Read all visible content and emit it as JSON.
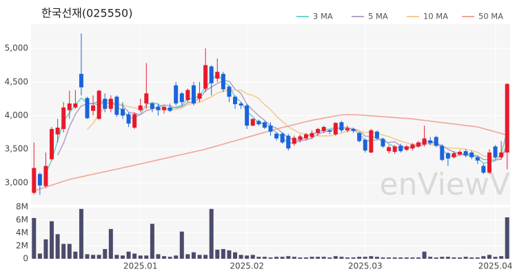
{
  "chart_data": [
    {
      "type": "candlestick",
      "title": "한국선재(025550)",
      "watermark": "enViewV",
      "categories": [
        null,
        null,
        null,
        null,
        null,
        null,
        null,
        null,
        null,
        null,
        null,
        null,
        null,
        null,
        null,
        null,
        null,
        null,
        "2025.01",
        null,
        null,
        null,
        null,
        null,
        null,
        null,
        null,
        null,
        null,
        null,
        null,
        null,
        null,
        null,
        null,
        null,
        "2025.02",
        null,
        null,
        null,
        null,
        null,
        null,
        null,
        null,
        null,
        null,
        null,
        null,
        null,
        null,
        null,
        null,
        null,
        null,
        null,
        "2025.03",
        null,
        null,
        null,
        null,
        null,
        null,
        null,
        null,
        null,
        null,
        null,
        null,
        null,
        null,
        null,
        null,
        null,
        null,
        null,
        null,
        null,
        "2025.04",
        null,
        null
      ],
      "open": [
        2850,
        3130,
        2950,
        3350,
        3720,
        3800,
        4080,
        4120,
        4620,
        4260,
        4070,
        3950,
        4250,
        4100,
        4280,
        4100,
        4020,
        3820,
        4080,
        4180,
        4180,
        4130,
        4080,
        4120,
        4450,
        4330,
        4230,
        4450,
        4250,
        4400,
        4730,
        4550,
        4620,
        4430,
        4280,
        4180,
        4150,
        3850,
        3920,
        3900,
        3850,
        3730,
        3730,
        3700,
        3580,
        3640,
        3660,
        3680,
        3740,
        3770,
        3780,
        3720,
        3900,
        3780,
        3800,
        3740,
        3640,
        3450,
        3760,
        3650,
        3470,
        3460,
        3550,
        3490,
        3510,
        3540,
        3570,
        3630,
        3680,
        3550,
        3440,
        3380,
        3420,
        3470,
        3450,
        3380,
        3250,
        3150,
        3540,
        3380,
        3450
      ],
      "high": [
        3600,
        3150,
        3450,
        3830,
        3950,
        4200,
        4370,
        4380,
        5220,
        4280,
        4300,
        4380,
        4330,
        4300,
        4300,
        4200,
        4050,
        4050,
        4250,
        4780,
        4200,
        4180,
        4150,
        4180,
        4500,
        4350,
        4400,
        4500,
        4500,
        5000,
        4750,
        4850,
        4650,
        4450,
        4300,
        4200,
        4170,
        3960,
        3940,
        3920,
        3900,
        3750,
        3750,
        3730,
        3700,
        3720,
        3740,
        3780,
        3820,
        3850,
        3800,
        3900,
        3920,
        3850,
        3820,
        3760,
        3660,
        3800,
        3780,
        3670,
        3560,
        3560,
        3580,
        3560,
        3590,
        3620,
        3850,
        3680,
        3700,
        3580,
        3460,
        3470,
        3490,
        3500,
        3480,
        3400,
        3280,
        3500,
        3560,
        3620,
        4480
      ],
      "low": [
        2830,
        2820,
        2920,
        3330,
        3600,
        3750,
        3950,
        4100,
        4300,
        3950,
        4000,
        3940,
        4050,
        4050,
        3980,
        3950,
        3830,
        3800,
        4050,
        4100,
        4050,
        4000,
        4030,
        4050,
        4150,
        4150,
        4200,
        4150,
        4200,
        4350,
        4300,
        4500,
        4350,
        4200,
        4100,
        4100,
        3800,
        3840,
        3850,
        3800,
        3700,
        3630,
        3580,
        3480,
        3550,
        3600,
        3630,
        3650,
        3700,
        3740,
        3720,
        3700,
        3750,
        3750,
        3740,
        3600,
        3450,
        3440,
        3640,
        3520,
        3440,
        3430,
        3450,
        3470,
        3480,
        3520,
        3540,
        3560,
        3530,
        3320,
        3250,
        3360,
        3400,
        3380,
        3350,
        3280,
        3130,
        3130,
        3350,
        3350,
        3200
      ],
      "close": [
        3220,
        2960,
        3250,
        3800,
        3820,
        4120,
        4180,
        4180,
        4420,
        3960,
        4150,
        4370,
        4100,
        4250,
        4010,
        4000,
        3880,
        4020,
        4150,
        4330,
        4100,
        4080,
        4130,
        4070,
        4180,
        4200,
        4380,
        4180,
        4330,
        4750,
        4480,
        4650,
        4390,
        4280,
        4170,
        4150,
        3850,
        3950,
        3870,
        3820,
        3760,
        3660,
        3600,
        3510,
        3670,
        3690,
        3720,
        3740,
        3800,
        3830,
        3760,
        3890,
        3780,
        3810,
        3770,
        3620,
        3480,
        3780,
        3660,
        3540,
        3530,
        3540,
        3470,
        3540,
        3570,
        3600,
        3660,
        3590,
        3550,
        3340,
        3360,
        3440,
        3460,
        3410,
        3380,
        3330,
        3150,
        3450,
        3380,
        3450,
        4470
      ],
      "up_color": "#e8192c",
      "down_color": "#1a63db",
      "series": [
        {
          "name": "3 MA",
          "color": "#72d2cb",
          "values": [
            null,
            null,
            3143,
            3337,
            3623,
            3913,
            4040,
            4160,
            4260,
            4187,
            4177,
            4160,
            4207,
            4240,
            4120,
            4087,
            3963,
            3967,
            4017,
            4167,
            4193,
            4170,
            4103,
            4093,
            4127,
            4150,
            4253,
            4253,
            4297,
            4420,
            4520,
            4627,
            4507,
            4440,
            4280,
            4200,
            4057,
            3983,
            3890,
            3880,
            3817,
            3747,
            3673,
            3590,
            3593,
            3623,
            3693,
            3717,
            3753,
            3790,
            3797,
            3827,
            3810,
            3827,
            3787,
            3733,
            3623,
            3627,
            3640,
            3660,
            3577,
            3537,
            3513,
            3517,
            3527,
            3570,
            3610,
            3617,
            3600,
            3493,
            3417,
            3380,
            3420,
            3437,
            3417,
            3373,
            3287,
            3310,
            3327,
            3427,
            3767
          ]
        },
        {
          "name": "5 MA",
          "color": "#b4a3ca",
          "values": [
            null,
            null,
            null,
            null,
            3410,
            3590,
            3834,
            4020,
            4144,
            4172,
            4178,
            4216,
            4200,
            4166,
            4176,
            4146,
            4048,
            4032,
            4012,
            4076,
            4096,
            4136,
            4158,
            4142,
            4112,
            4132,
            4192,
            4202,
            4254,
            4368,
            4424,
            4478,
            4520,
            4510,
            4394,
            4328,
            4168,
            4080,
            3998,
            3928,
            3850,
            3812,
            3742,
            3670,
            3640,
            3626,
            3638,
            3666,
            3724,
            3756,
            3770,
            3804,
            3812,
            3814,
            3802,
            3774,
            3692,
            3692,
            3662,
            3616,
            3598,
            3610,
            3548,
            3524,
            3530,
            3544,
            3568,
            3592,
            3594,
            3548,
            3500,
            3456,
            3430,
            3402,
            3410,
            3404,
            3346,
            3344,
            3338,
            3352,
            3580
          ]
        },
        {
          "name": "10 MA",
          "color": "#f2cb92",
          "values": [
            null,
            null,
            null,
            null,
            null,
            null,
            null,
            null,
            null,
            3791,
            3884,
            4025,
            4110,
            4155,
            4174,
            4162,
            4132,
            4116,
            4089,
            4126,
            4121,
            4092,
            4095,
            4077,
            4094,
            4114,
            4164,
            4180,
            4198,
            4240,
            4278,
            4335,
            4361,
            4382,
            4381,
            4376,
            4323,
            4300,
            4254,
            4161,
            4089,
            3990,
            3911,
            3834,
            3784,
            3738,
            3725,
            3704,
            3697,
            3698,
            3698,
            3721,
            3739,
            3769,
            3779,
            3772,
            3748,
            3752,
            3738,
            3709,
            3686,
            3651,
            3620,
            3593,
            3573,
            3571,
            3589,
            3570,
            3559,
            3539,
            3522,
            3512,
            3511,
            3498,
            3479,
            3452,
            3401,
            3387,
            3370,
            3381,
            3492
          ]
        },
        {
          "name": "50 MA",
          "color": "#f3a394",
          "values": [
            2880,
            2908,
            2937,
            2965,
            2993,
            3022,
            3050,
            3069,
            3088,
            3108,
            3127,
            3146,
            3165,
            3184,
            3203,
            3223,
            3242,
            3261,
            3280,
            3300,
            3320,
            3340,
            3360,
            3380,
            3400,
            3420,
            3440,
            3460,
            3480,
            3500,
            3525,
            3550,
            3575,
            3600,
            3625,
            3650,
            3675,
            3700,
            3725,
            3750,
            3775,
            3800,
            3822,
            3843,
            3865,
            3887,
            3908,
            3930,
            3946,
            3962,
            3978,
            3994,
            4010,
            4012,
            4012,
            4010,
            4003,
            3997,
            3990,
            3983,
            3977,
            3970,
            3963,
            3957,
            3950,
            3939,
            3928,
            3917,
            3906,
            3895,
            3885,
            3874,
            3863,
            3852,
            3841,
            3830,
            3806,
            3782,
            3758,
            3734,
            3710
          ]
        }
      ],
      "legend": "top-right",
      "grid": true,
      "ylim": [
        2670,
        5360
      ],
      "yticks": [
        {
          "value": 3000,
          "label": "3,000"
        },
        {
          "value": 3500,
          "label": "3,500"
        },
        {
          "value": 4000,
          "label": "4,000"
        },
        {
          "value": 4500,
          "label": "4,500"
        },
        {
          "value": 5000,
          "label": "5,000"
        }
      ]
    },
    {
      "type": "bar",
      "color": "#4b4b6d",
      "grid": true,
      "values": [
        6300000,
        800000,
        3000000,
        5800000,
        3800000,
        2300000,
        2300000,
        1100000,
        7700000,
        700000,
        600000,
        600000,
        1500000,
        4600000,
        600000,
        500000,
        1100000,
        800000,
        500000,
        500000,
        5400000,
        700000,
        400000,
        300000,
        500000,
        4200000,
        700000,
        1000000,
        600000,
        600000,
        7700000,
        1400000,
        1500000,
        1300000,
        1000000,
        600000,
        500000,
        600000,
        300000,
        300000,
        200000,
        300000,
        300000,
        400000,
        300000,
        200000,
        200000,
        300000,
        300000,
        300000,
        200000,
        400000,
        300000,
        200000,
        200000,
        300000,
        300000,
        400000,
        300000,
        200000,
        200000,
        200000,
        200000,
        200000,
        200000,
        200000,
        1100000,
        300000,
        200000,
        300000,
        300000,
        200000,
        200000,
        300000,
        200000,
        200000,
        400000,
        600000,
        300000,
        400000,
        6400000
      ],
      "ylim": [
        0,
        8000000
      ],
      "yticks": [
        0,
        {
          "value": 2000000,
          "label": "2M"
        },
        {
          "value": 4000000,
          "label": "4M"
        },
        {
          "value": 6000000,
          "label": "6M"
        },
        {
          "value": 8000000,
          "label": "8M"
        }
      ]
    }
  ]
}
